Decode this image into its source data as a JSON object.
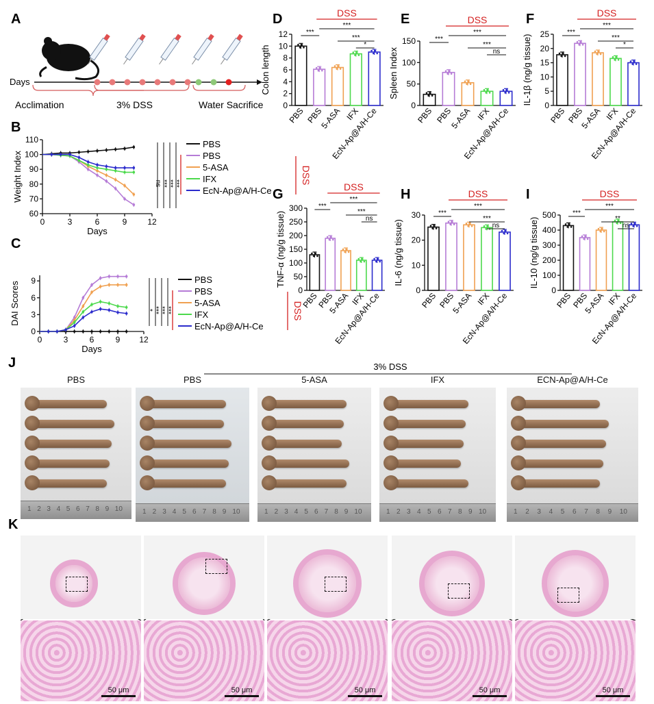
{
  "panels": {
    "A": {
      "label": "A",
      "days_label": "Days",
      "phases": [
        "Acclimation",
        "3% DSS",
        "Water Sacrifice"
      ]
    },
    "B": {
      "label": "B",
      "ylabel": "Weight Index",
      "xlabel": "Days",
      "legend": [
        "PBS",
        "PBS",
        "5-ASA",
        "IFX",
        "EcN-Ap@A/H-Ce"
      ],
      "group_label": "DSS",
      "sig": [
        "ns",
        "***",
        "***",
        "***"
      ]
    },
    "C": {
      "label": "C",
      "ylabel": "DAI Scores",
      "xlabel": "Days",
      "legend": [
        "PBS",
        "PBS",
        "5-ASA",
        "IFX",
        "EcN-Ap@A/H-Ce"
      ],
      "group_label": "DSS",
      "sig": [
        "*",
        "***",
        "***",
        "***"
      ]
    },
    "D": {
      "label": "D",
      "ylabel": "Colon length",
      "group_label": "DSS",
      "sig": [
        "***",
        "***",
        "***",
        "*"
      ]
    },
    "E": {
      "label": "E",
      "ylabel": "Spleen Index",
      "group_label": "DSS",
      "sig": [
        "***",
        "***",
        "***",
        "ns"
      ]
    },
    "F": {
      "label": "F",
      "ylabel": "IL-1β (ng/g tissue)",
      "group_label": "DSS",
      "sig": [
        "***",
        "***",
        "***",
        "*"
      ]
    },
    "G": {
      "label": "G",
      "ylabel": "TNF-α (ng/g tissue)",
      "group_label": "DSS",
      "sig": [
        "***",
        "***",
        "***",
        "ns"
      ]
    },
    "H": {
      "label": "H",
      "ylabel": "IL-6 (ng/g tissue)",
      "group_label": "DSS",
      "sig": [
        "***",
        "***",
        "***",
        "ns"
      ]
    },
    "I": {
      "label": "I",
      "ylabel": "IL-10 (ng/g tissue)",
      "group_label": "DSS",
      "sig": [
        "***",
        "***",
        "**",
        "ns"
      ]
    },
    "J": {
      "label": "J",
      "dss_label": "3% DSS",
      "groups": [
        "PBS",
        "PBS",
        "5-ASA",
        "IFX",
        "ECN-Ap@A/H-Ce"
      ],
      "ruler_digits": [
        "1",
        "2",
        "3",
        "4",
        "5",
        "6",
        "7",
        "8",
        "9",
        "10"
      ]
    },
    "K": {
      "label": "K",
      "scale_label": "50 μm"
    }
  },
  "colors": {
    "PBS_healthy": "#111111",
    "PBS_dss": "#b57bd6",
    "5-ASA": "#f0a050",
    "IFX": "#4cd94c",
    "EcN-Ap@A/H-Ce": "#2b2bcc",
    "dss_red": "#d42020"
  },
  "chart_data": [
    {
      "id": "B",
      "type": "line",
      "xlabel": "Days",
      "ylabel": "Weight Index",
      "xlim": [
        0,
        12
      ],
      "ylim": [
        60,
        110
      ],
      "xticks": [
        0,
        3,
        6,
        9,
        12
      ],
      "yticks": [
        60,
        70,
        80,
        90,
        100,
        110
      ],
      "x": [
        0,
        1,
        2,
        3,
        4,
        5,
        6,
        7,
        8,
        9,
        10
      ],
      "series": [
        {
          "name": "PBS",
          "values": [
            100,
            100.5,
            101,
            101,
            101.5,
            102,
            102.5,
            103,
            103.5,
            104,
            105
          ]
        },
        {
          "name": "PBS",
          "values": [
            100,
            100,
            99.5,
            99,
            95,
            90,
            86,
            82,
            77,
            70,
            66
          ]
        },
        {
          "name": "5-ASA",
          "values": [
            100,
            100,
            99.5,
            99,
            96,
            92,
            89,
            86,
            83,
            79,
            73
          ]
        },
        {
          "name": "IFX",
          "values": [
            100,
            100,
            99.5,
            99,
            96,
            93,
            91,
            90,
            89,
            88,
            88
          ]
        },
        {
          "name": "EcN-Ap@A/H-Ce",
          "values": [
            100,
            100,
            100,
            100,
            98,
            95,
            93,
            92,
            91,
            91,
            91
          ]
        }
      ]
    },
    {
      "id": "C",
      "type": "line",
      "xlabel": "Days",
      "ylabel": "DAI Scores",
      "xlim": [
        0,
        12
      ],
      "ylim": [
        0,
        10
      ],
      "xticks": [
        0,
        3,
        6,
        9,
        12
      ],
      "yticks": [
        0,
        3,
        6,
        9
      ],
      "x": [
        0,
        1,
        2,
        3,
        4,
        5,
        6,
        7,
        8,
        9,
        10
      ],
      "series": [
        {
          "name": "PBS",
          "values": [
            0,
            0,
            0,
            0,
            0,
            0,
            0,
            0,
            0,
            0,
            0
          ]
        },
        {
          "name": "PBS",
          "values": [
            0,
            0,
            0,
            0.3,
            2.5,
            6,
            8.3,
            9.5,
            9.8,
            9.8,
            9.8
          ]
        },
        {
          "name": "5-ASA",
          "values": [
            0,
            0,
            0,
            0.3,
            2,
            4.5,
            7,
            8,
            8.3,
            8.3,
            8.3
          ]
        },
        {
          "name": "IFX",
          "values": [
            0,
            0,
            0,
            0.3,
            1.6,
            3.5,
            4.8,
            5.3,
            5,
            4.5,
            4.3
          ]
        },
        {
          "name": "EcN-Ap@A/H-Ce",
          "values": [
            0,
            0,
            0,
            0.3,
            1,
            2.5,
            3.5,
            4,
            3.8,
            3.4,
            3.2
          ]
        }
      ]
    },
    {
      "id": "D",
      "type": "bar",
      "ylabel": "Colon length",
      "ylim": [
        0,
        12
      ],
      "yticks": [
        0,
        2,
        4,
        6,
        8,
        10,
        12
      ],
      "categories": [
        "PBS",
        "PBS",
        "5-ASA",
        "IFX",
        "EcN-Ap@A/H-Ce"
      ],
      "values": [
        10,
        6.1,
        6.4,
        8.7,
        9.0
      ]
    },
    {
      "id": "E",
      "type": "bar",
      "ylabel": "Spleen Index",
      "ylim": [
        0,
        150
      ],
      "yticks": [
        0,
        50,
        100,
        150
      ],
      "categories": [
        "PBS",
        "PBS",
        "5-ASA",
        "IFX",
        "EcN-Ap@A/H-Ce"
      ],
      "values": [
        26,
        77,
        53,
        33,
        33
      ]
    },
    {
      "id": "F",
      "type": "bar",
      "ylabel": "IL-1β (ng/g tissue)",
      "ylim": [
        0,
        25
      ],
      "yticks": [
        0,
        5,
        10,
        15,
        20,
        25
      ],
      "categories": [
        "PBS",
        "PBS",
        "5-ASA",
        "IFX",
        "EcN-Ap@A/H-Ce"
      ],
      "values": [
        17.8,
        21.8,
        18.5,
        16.5,
        15
      ]
    },
    {
      "id": "G",
      "type": "bar",
      "ylabel": "TNF-α (ng/g tissue)",
      "ylim": [
        0,
        300
      ],
      "yticks": [
        0,
        50,
        100,
        150,
        200,
        250,
        300
      ],
      "categories": [
        "PBS",
        "PBS",
        "5-ASA",
        "IFX",
        "EcN-Ap@A/H-Ce"
      ],
      "values": [
        130,
        190,
        145,
        110,
        110
      ]
    },
    {
      "id": "H",
      "type": "bar",
      "ylabel": "IL-6 (ng/g tissue)",
      "ylim": [
        0,
        30
      ],
      "yticks": [
        0,
        10,
        20,
        30
      ],
      "categories": [
        "PBS",
        "PBS",
        "5-ASA",
        "IFX",
        "EcN-Ap@A/H-Ce"
      ],
      "values": [
        25.2,
        26.8,
        26.1,
        25,
        23.2
      ]
    },
    {
      "id": "I",
      "type": "bar",
      "ylabel": "IL-10 (ng/g tissue)",
      "ylim": [
        0,
        500
      ],
      "yticks": [
        0,
        100,
        200,
        300,
        400,
        500
      ],
      "categories": [
        "PBS",
        "PBS",
        "5-ASA",
        "IFX",
        "EcN-Ap@A/H-Ce"
      ],
      "values": [
        430,
        350,
        400,
        455,
        435
      ]
    }
  ]
}
